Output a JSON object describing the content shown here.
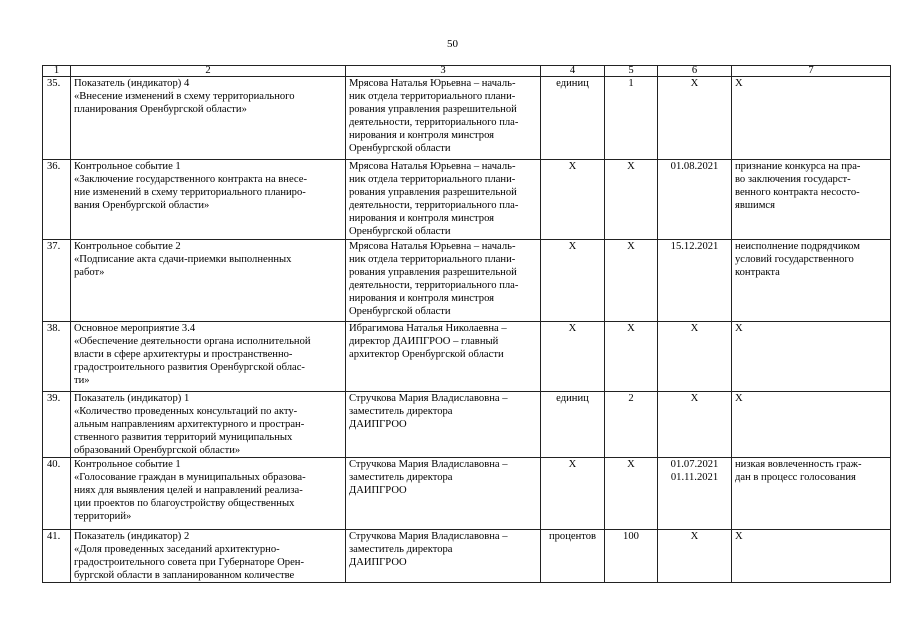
{
  "page_number": "50",
  "columns": [
    "1",
    "2",
    "3",
    "4",
    "5",
    "6",
    "7"
  ],
  "rows": [
    {
      "n": "35.",
      "name": "Показатель (индикатор) 4\n«Внесение изменений в схему территориального\nпланирования Оренбургской области»",
      "resp": "Мрясова Наталья Юрьевна – началь-\nник отдела территориального плани-\nрования управления разрешительной\nдеятельности, территориального пла-\nнирования и контроля минстроя\nОренбургской области",
      "unit": "единиц",
      "value": "1",
      "date": "Х",
      "risk": "Х"
    },
    {
      "n": "36.",
      "name": "Контрольное событие 1\n«Заключение государственного контракта на внесе-\nние изменений в схему территориального планиро-\nвания Оренбургской области»",
      "resp": "Мрясова Наталья Юрьевна – началь-\nник отдела территориального плани-\nрования управления разрешительной\nдеятельности, территориального пла-\nнирования и контроля минстроя\nОренбургской области",
      "unit": "Х",
      "value": "Х",
      "date": "01.08.2021",
      "risk": "признание конкурса на пра-\nво заключения государст-\nвенного контракта несосто-\nявшимся"
    },
    {
      "n": "37.",
      "name": "Контрольное событие 2\n«Подписание акта сдачи-приемки выполненных\nработ»",
      "resp": "Мрясова Наталья Юрьевна – началь-\nник отдела территориального плани-\nрования управления разрешительной\nдеятельности, территориального пла-\nнирования и контроля минстроя\nОренбургской области",
      "unit": "Х",
      "value": "Х",
      "date": "15.12.2021",
      "risk": "неисполнение подрядчиком\nусловий государственного\nконтракта"
    },
    {
      "n": "38.",
      "name": "Основное мероприятие 3.4\n«Обеспечение деятельности органа исполнительной\nвласти в сфере архитектуры и пространственно-\nградостроительного развития Оренбургской облас-\nти»",
      "resp": "Ибрагимова Наталья Николаевна –\nдиректор ДАИПГРОО – главный\nархитектор Оренбургской области",
      "unit": "Х",
      "value": "Х",
      "date": "Х",
      "risk": "Х"
    },
    {
      "n": "39.",
      "name": "Показатель (индикатор) 1\n«Количество проведенных консультаций по акту-\nальным направлениям архитектурного и простран-\nственного развития территорий муниципальных\nобразований Оренбургской области»",
      "resp": "Стручкова Мария Владиславовна –\nзаместитель директора\nДАИПГРОО",
      "unit": "единиц",
      "value": "2",
      "date": "Х",
      "risk": "Х"
    },
    {
      "n": "40.",
      "name": "Контрольное событие 1\n«Голосование граждан в муниципальных образова-\nниях для выявления целей и направлений реализа-\nции проектов по благоустройству общественных\nтерриторий»",
      "resp": "Стручкова Мария Владиславовна –\nзаместитель директора\nДАИПГРОО",
      "unit": "Х",
      "value": "Х",
      "date": "01.07.2021\n01.11.2021",
      "risk": "низкая вовлеченность граж-\nдан в процесс голосования"
    },
    {
      "n": "41.",
      "name": "Показатель (индикатор) 2\n«Доля проведенных заседаний архитектурно-\nградостроительного совета при Губернаторе Орен-\nбургской области в запланированном количестве",
      "resp": "Стручкова Мария Владиславовна –\nзаместитель директора\nДАИПГРОО",
      "unit": "процентов",
      "value": "100",
      "date": "Х",
      "risk": "Х"
    }
  ]
}
